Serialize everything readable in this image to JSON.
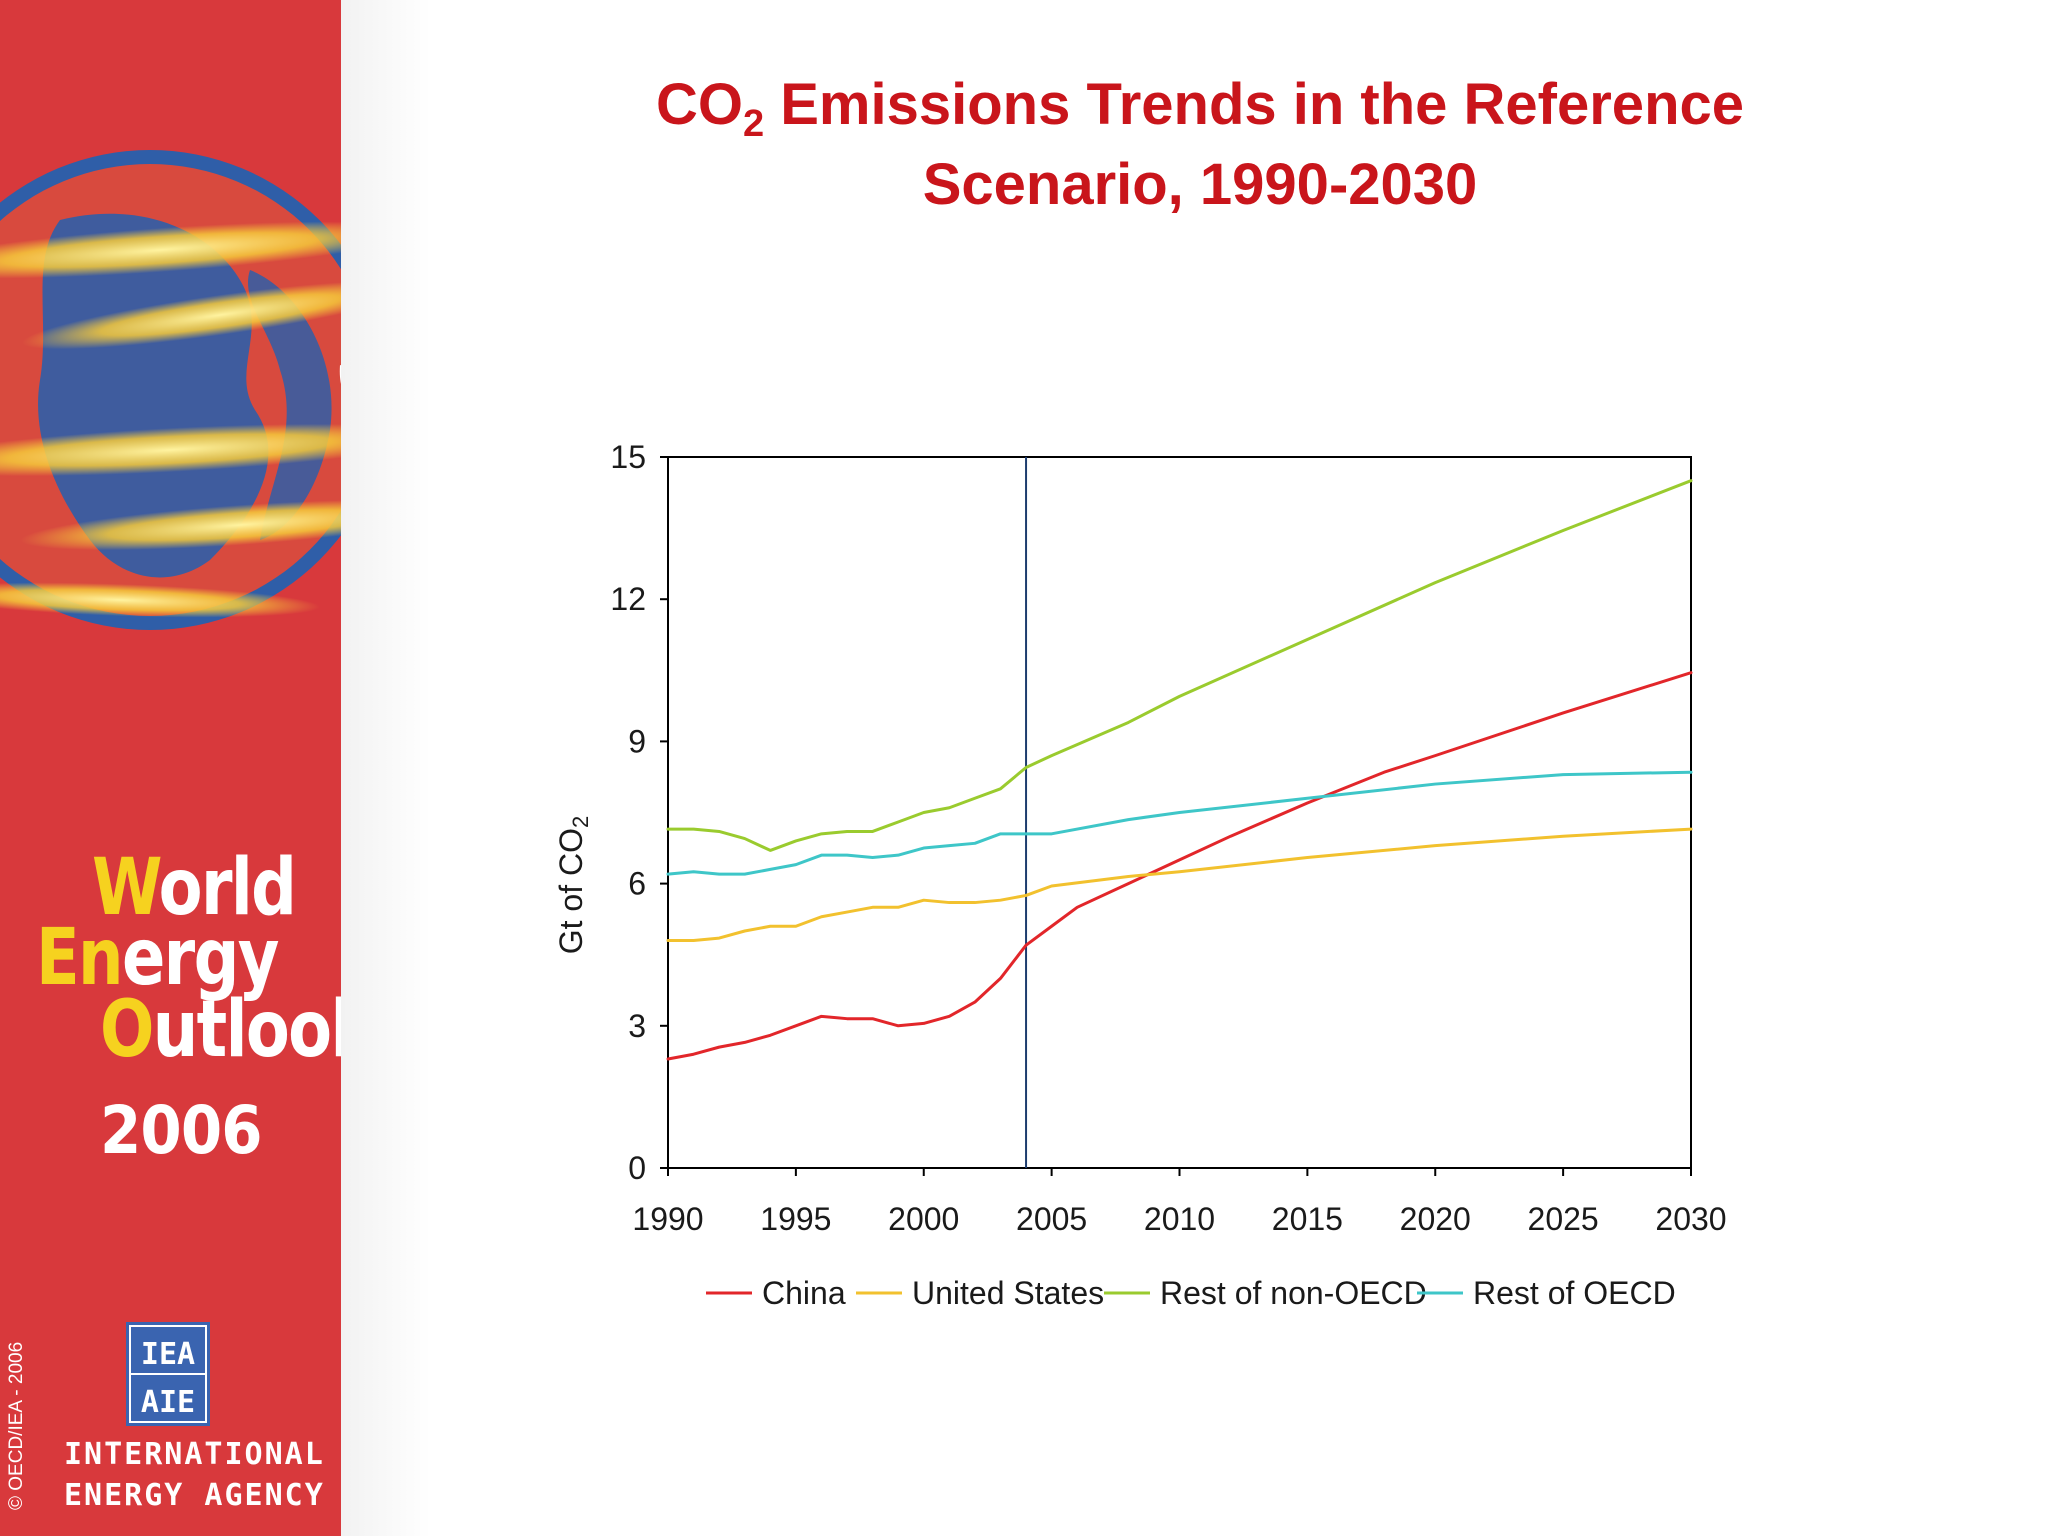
{
  "sidebar": {
    "brand": {
      "line1_cap": "W",
      "line1_rest": "orld",
      "line2_cap": "En",
      "line2_rest": "ergy",
      "line3_cap": "O",
      "line3_rest": "utlook",
      "year": "2006"
    },
    "copyright": "© OECD/IEA - 2006",
    "org_line1": "INTERNATIONAL",
    "org_line2": "ENERGY AGENCY",
    "logo_top": "IEA",
    "logo_bottom": "AIE"
  },
  "slide": {
    "title_part1": "CO",
    "title_sub": "2",
    "title_part2": " Emissions Trends in the Reference",
    "title_line2": "Scenario, 1990-2030"
  },
  "colors": {
    "sidebar": "#d8393c",
    "title": "#c9151b",
    "china": "#e2262a",
    "us": "#f2c12e",
    "non_oecd": "#9acb2e",
    "oecd": "#3ec6c8"
  },
  "chart_data": {
    "type": "line",
    "title": "CO2 Emissions Trends in the Reference Scenario, 1990-2030",
    "xlabel": "",
    "ylabel": "Gt of CO",
    "ylabel_sub": "2",
    "xlim": [
      1990,
      2030
    ],
    "ylim": [
      0,
      15
    ],
    "x_ticks": [
      1990,
      1995,
      2000,
      2005,
      2010,
      2015,
      2020,
      2025,
      2030
    ],
    "y_ticks": [
      0,
      3,
      6,
      9,
      12,
      15
    ],
    "x_tick_labels": [
      "1990",
      "1995",
      "2000",
      "2005",
      "2010",
      "2015",
      "2020",
      "2025",
      "2030"
    ],
    "y_tick_labels": [
      "0",
      "3",
      "6",
      "9",
      "12",
      "15"
    ],
    "reference_line_x": 2004,
    "legend_position": "bottom",
    "series": [
      {
        "name": "China",
        "color_key": "china",
        "x": [
          1990,
          1991,
          1992,
          1993,
          1994,
          1995,
          1996,
          1997,
          1998,
          1999,
          2000,
          2001,
          2002,
          2003,
          2004,
          2005,
          2006,
          2008,
          2010,
          2012,
          2015,
          2018,
          2020,
          2025,
          2030
        ],
        "y": [
          2.3,
          2.4,
          2.55,
          2.65,
          2.8,
          3.0,
          3.2,
          3.15,
          3.15,
          3.0,
          3.05,
          3.2,
          3.5,
          4.0,
          4.7,
          5.1,
          5.5,
          6.0,
          6.5,
          7.0,
          7.7,
          8.35,
          8.7,
          9.6,
          10.45
        ]
      },
      {
        "name": "United States",
        "color_key": "us",
        "x": [
          1990,
          1991,
          1992,
          1993,
          1994,
          1995,
          1996,
          1997,
          1998,
          1999,
          2000,
          2001,
          2002,
          2003,
          2004,
          2005,
          2008,
          2010,
          2015,
          2020,
          2025,
          2030
        ],
        "y": [
          4.8,
          4.8,
          4.85,
          5.0,
          5.1,
          5.1,
          5.3,
          5.4,
          5.5,
          5.5,
          5.65,
          5.6,
          5.6,
          5.65,
          5.75,
          5.95,
          6.15,
          6.25,
          6.55,
          6.8,
          7.0,
          7.15
        ]
      },
      {
        "name": "Rest of non-OECD",
        "color_key": "non_oecd",
        "x": [
          1990,
          1991,
          1992,
          1993,
          1994,
          1995,
          1996,
          1997,
          1998,
          1999,
          2000,
          2001,
          2002,
          2003,
          2004,
          2005,
          2008,
          2010,
          2015,
          2020,
          2025,
          2030
        ],
        "y": [
          7.15,
          7.15,
          7.1,
          6.95,
          6.7,
          6.9,
          7.05,
          7.1,
          7.1,
          7.3,
          7.5,
          7.6,
          7.8,
          8.0,
          8.45,
          8.7,
          9.4,
          9.95,
          11.15,
          12.35,
          13.45,
          14.5
        ]
      },
      {
        "name": "Rest of OECD",
        "color_key": "oecd",
        "x": [
          1990,
          1991,
          1992,
          1993,
          1994,
          1995,
          1996,
          1997,
          1998,
          1999,
          2000,
          2001,
          2002,
          2003,
          2004,
          2005,
          2008,
          2010,
          2015,
          2020,
          2025,
          2030
        ],
        "y": [
          6.2,
          6.25,
          6.2,
          6.2,
          6.3,
          6.4,
          6.6,
          6.6,
          6.55,
          6.6,
          6.75,
          6.8,
          6.85,
          7.05,
          7.05,
          7.05,
          7.35,
          7.5,
          7.8,
          8.1,
          8.3,
          8.35
        ]
      }
    ]
  }
}
